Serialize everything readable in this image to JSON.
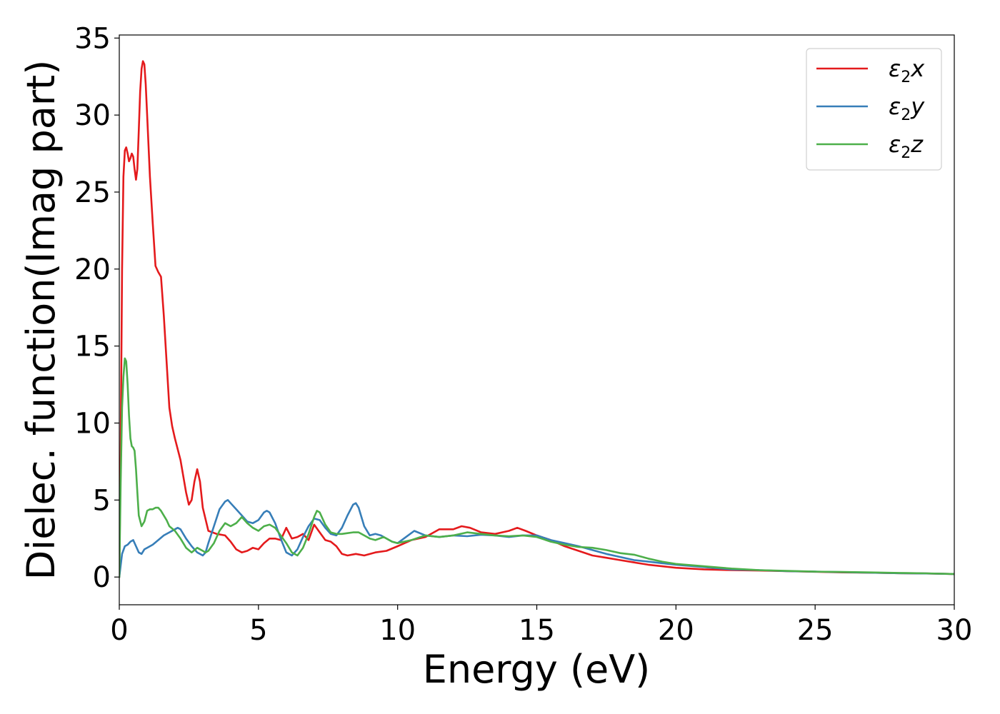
{
  "chart_data": {
    "type": "line",
    "title": "",
    "xlabel": "Energy (eV)",
    "ylabel": "Dielec. function(Imag part)",
    "xlim": [
      0,
      30
    ],
    "ylim": [
      -1.8,
      35.2
    ],
    "xticks": [
      0,
      5,
      10,
      15,
      20,
      25,
      30
    ],
    "yticks": [
      0,
      5,
      10,
      15,
      20,
      25,
      30,
      35
    ],
    "grid": false,
    "legend_position": "top-right",
    "series": [
      {
        "name": "ε₂x",
        "legend_main": "ε",
        "legend_sub": "2",
        "legend_suffix": "x",
        "color": "#e41a1c",
        "x": [
          0,
          0.05,
          0.1,
          0.15,
          0.2,
          0.25,
          0.3,
          0.35,
          0.4,
          0.45,
          0.5,
          0.55,
          0.6,
          0.65,
          0.7,
          0.75,
          0.8,
          0.85,
          0.9,
          0.95,
          1.0,
          1.1,
          1.2,
          1.3,
          1.4,
          1.5,
          1.6,
          1.7,
          1.8,
          1.9,
          2.0,
          2.2,
          2.4,
          2.5,
          2.6,
          2.7,
          2.8,
          2.9,
          3.0,
          3.2,
          3.5,
          3.8,
          4.0,
          4.2,
          4.4,
          4.6,
          4.8,
          5.0,
          5.2,
          5.4,
          5.6,
          5.8,
          6.0,
          6.2,
          6.4,
          6.6,
          6.8,
          7.0,
          7.2,
          7.4,
          7.6,
          7.8,
          8.0,
          8.2,
          8.5,
          8.8,
          9.2,
          9.6,
          10.0,
          10.5,
          11.0,
          11.5,
          12.0,
          12.3,
          12.6,
          13.0,
          13.5,
          14.0,
          14.3,
          14.6,
          15.0,
          15.5,
          16.0,
          16.5,
          17.0,
          17.5,
          18.0,
          18.5,
          19.0,
          19.5,
          20.0,
          21.0,
          22.0,
          23.0,
          24.0,
          25.0,
          26.0,
          27.0,
          28.0,
          29.0,
          30.0
        ],
        "y": [
          0,
          8,
          20,
          26,
          27.7,
          27.9,
          27.5,
          27.0,
          27.2,
          27.5,
          27.3,
          26.5,
          25.8,
          26.5,
          29,
          31.5,
          33,
          33.5,
          33.3,
          32,
          30,
          26,
          23,
          20.2,
          19.8,
          19.5,
          17,
          14,
          11,
          9.8,
          9,
          7.6,
          5.5,
          4.7,
          5.0,
          6.2,
          7.0,
          6.2,
          4.5,
          3.0,
          2.8,
          2.7,
          2.3,
          1.8,
          1.6,
          1.7,
          1.9,
          1.8,
          2.2,
          2.5,
          2.5,
          2.4,
          3.2,
          2.5,
          2.6,
          2.8,
          2.4,
          3.4,
          2.9,
          2.4,
          2.3,
          2.0,
          1.5,
          1.4,
          1.5,
          1.4,
          1.6,
          1.7,
          2.0,
          2.4,
          2.6,
          3.1,
          3.1,
          3.3,
          3.2,
          2.9,
          2.8,
          3.0,
          3.2,
          3.0,
          2.7,
          2.4,
          2.0,
          1.7,
          1.4,
          1.25,
          1.1,
          0.95,
          0.8,
          0.7,
          0.6,
          0.5,
          0.45,
          0.42,
          0.38,
          0.34,
          0.3,
          0.28,
          0.25,
          0.23,
          0.2
        ]
      },
      {
        "name": "ε₂y",
        "legend_main": "ε",
        "legend_sub": "2",
        "legend_suffix": "y",
        "color": "#377eb8",
        "x": [
          0,
          0.1,
          0.2,
          0.3,
          0.4,
          0.5,
          0.6,
          0.7,
          0.8,
          0.9,
          1.0,
          1.2,
          1.4,
          1.6,
          1.8,
          2.0,
          2.1,
          2.2,
          2.4,
          2.6,
          2.8,
          3.0,
          3.1,
          3.2,
          3.4,
          3.6,
          3.8,
          3.9,
          4.0,
          4.2,
          4.4,
          4.6,
          4.8,
          5.0,
          5.2,
          5.3,
          5.4,
          5.6,
          5.8,
          6.0,
          6.2,
          6.4,
          6.6,
          6.8,
          7.0,
          7.2,
          7.4,
          7.6,
          7.8,
          8.0,
          8.2,
          8.4,
          8.5,
          8.6,
          8.8,
          9.0,
          9.2,
          9.4,
          9.6,
          9.8,
          10.0,
          10.3,
          10.6,
          11.0,
          11.5,
          12.0,
          12.5,
          13.0,
          13.5,
          14.0,
          14.5,
          15.0,
          15.5,
          16.0,
          16.5,
          17.0,
          17.5,
          18.0,
          18.5,
          19.0,
          19.5,
          20.0,
          21.0,
          22.0,
          23.0,
          24.0,
          25.0,
          26.0,
          27.0,
          28.0,
          29.0,
          30.0
        ],
        "y": [
          0,
          1.5,
          2.0,
          2.1,
          2.3,
          2.4,
          2.0,
          1.6,
          1.5,
          1.8,
          1.9,
          2.1,
          2.4,
          2.7,
          2.9,
          3.1,
          3.2,
          3.1,
          2.5,
          2.0,
          1.6,
          1.4,
          1.6,
          2.2,
          3.3,
          4.4,
          4.9,
          5.0,
          4.8,
          4.4,
          4.0,
          3.6,
          3.5,
          3.7,
          4.2,
          4.3,
          4.2,
          3.5,
          2.5,
          1.6,
          1.4,
          1.8,
          2.6,
          3.3,
          3.8,
          3.7,
          3.2,
          2.8,
          2.7,
          3.2,
          4.0,
          4.7,
          4.8,
          4.5,
          3.3,
          2.7,
          2.8,
          2.7,
          2.5,
          2.3,
          2.2,
          2.6,
          3.0,
          2.7,
          2.6,
          2.7,
          2.65,
          2.75,
          2.7,
          2.6,
          2.7,
          2.7,
          2.4,
          2.2,
          2.0,
          1.75,
          1.5,
          1.3,
          1.1,
          1.0,
          0.9,
          0.8,
          0.65,
          0.5,
          0.45,
          0.38,
          0.35,
          0.32,
          0.28,
          0.25,
          0.23,
          0.2
        ]
      },
      {
        "name": "ε₂z",
        "legend_main": "ε",
        "legend_sub": "2",
        "legend_suffix": "z",
        "color": "#4daf4a",
        "x": [
          0,
          0.05,
          0.1,
          0.15,
          0.2,
          0.25,
          0.3,
          0.35,
          0.4,
          0.45,
          0.5,
          0.55,
          0.6,
          0.65,
          0.7,
          0.8,
          0.9,
          1.0,
          1.1,
          1.2,
          1.3,
          1.4,
          1.5,
          1.6,
          1.7,
          1.8,
          2.0,
          2.2,
          2.4,
          2.6,
          2.8,
          3.0,
          3.1,
          3.2,
          3.4,
          3.6,
          3.8,
          4.0,
          4.2,
          4.4,
          4.6,
          4.8,
          5.0,
          5.2,
          5.4,
          5.6,
          5.8,
          6.0,
          6.2,
          6.4,
          6.6,
          6.8,
          7.0,
          7.1,
          7.2,
          7.4,
          7.6,
          7.8,
          8.0,
          8.2,
          8.4,
          8.6,
          8.8,
          9.0,
          9.2,
          9.5,
          9.8,
          10.0,
          10.5,
          11.0,
          11.5,
          12.0,
          12.5,
          13.0,
          13.5,
          14.0,
          14.5,
          15.0,
          15.5,
          16.0,
          16.5,
          17.0,
          17.5,
          18.0,
          18.5,
          19.0,
          19.5,
          20.0,
          21.0,
          22.0,
          23.0,
          24.0,
          25.0,
          26.0,
          27.0,
          28.0,
          29.0,
          30.0
        ],
        "y": [
          0,
          6,
          11,
          13,
          14.2,
          14.0,
          12.5,
          10.5,
          9.0,
          8.5,
          8.4,
          8.2,
          7.0,
          5.5,
          4.0,
          3.3,
          3.6,
          4.3,
          4.4,
          4.4,
          4.5,
          4.5,
          4.3,
          4.0,
          3.7,
          3.3,
          3.0,
          2.5,
          1.9,
          1.6,
          1.9,
          1.7,
          1.6,
          1.7,
          2.2,
          3.0,
          3.5,
          3.3,
          3.5,
          3.9,
          3.5,
          3.2,
          3.0,
          3.3,
          3.4,
          3.2,
          2.7,
          2.2,
          1.6,
          1.4,
          1.9,
          2.8,
          3.9,
          4.3,
          4.2,
          3.4,
          2.9,
          2.8,
          2.8,
          2.85,
          2.9,
          2.9,
          2.7,
          2.5,
          2.4,
          2.6,
          2.3,
          2.2,
          2.4,
          2.7,
          2.6,
          2.7,
          2.9,
          2.8,
          2.7,
          2.65,
          2.7,
          2.6,
          2.3,
          2.1,
          1.95,
          1.9,
          1.75,
          1.55,
          1.45,
          1.2,
          1.0,
          0.85,
          0.7,
          0.55,
          0.45,
          0.4,
          0.35,
          0.33,
          0.3,
          0.27,
          0.24,
          0.2
        ]
      }
    ]
  }
}
